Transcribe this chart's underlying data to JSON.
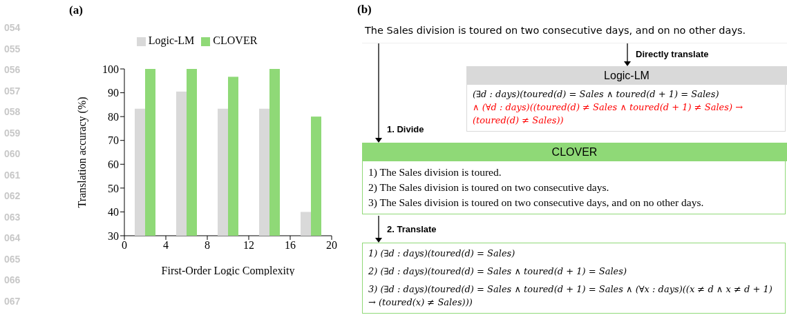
{
  "chart_data": [
    {
      "type": "bar",
      "title": "(a)",
      "xlabel": "First-Order Logic Complexity",
      "ylabel": "Translation accuracy (%)",
      "xlim": [
        0,
        20
      ],
      "xticks": [
        0,
        4,
        8,
        12,
        16,
        20
      ],
      "ylim": [
        30,
        100
      ],
      "yticks": [
        30,
        40,
        50,
        60,
        70,
        80,
        90,
        100
      ],
      "legend": "top",
      "series": [
        {
          "name": "Logic-LM",
          "color": "#d9d9d9",
          "x": [
            1.5,
            5.5,
            9.5,
            13.5,
            17.5
          ],
          "values": [
            83.3,
            90.5,
            83.3,
            83.3,
            40
          ]
        },
        {
          "name": "CLOVER",
          "color": "#8fd977",
          "x": [
            2.5,
            6.5,
            10.5,
            14.5,
            18.5
          ],
          "values": [
            100,
            100,
            96.7,
            100,
            80
          ]
        }
      ],
      "annotations": [
        "054",
        "055",
        "056",
        "057",
        "058",
        "059",
        "060",
        "061",
        "062",
        "063",
        "064",
        "065",
        "066",
        "067"
      ]
    },
    {
      "type": "other",
      "title": "(b)",
      "annotations": [
        "The Sales division is toured on two consecutive days, and on no other days.",
        "Directly translate",
        "Logic-LM",
        "(∃d : days)(toured(d) = Sales ∧ toured(d + 1) = Sales)",
        "∧ (∀d : days)((toured(d) ≠ Sales ∧ toured(d + 1) ≠ Sales) → (toured(d) ≠ Sales))",
        "1. Divide",
        "CLOVER",
        "1) The Sales division is toured.",
        "2) The Sales division is toured on two consecutive days.",
        "3) The Sales division is toured on two consecutive days, and on no other days.",
        "2. Translate",
        "1) (∃d : days)(toured(d) = Sales)",
        "2) (∃d : days)(toured(d) = Sales ∧ toured(d + 1) = Sales)",
        "3) (∃d : days)(toured(d) = Sales ∧ toured(d + 1) = Sales ∧ (∀x : days)((x ≠ d ∧ x ≠ d + 1) → (toured(x) ≠ Sales)))"
      ]
    }
  ]
}
